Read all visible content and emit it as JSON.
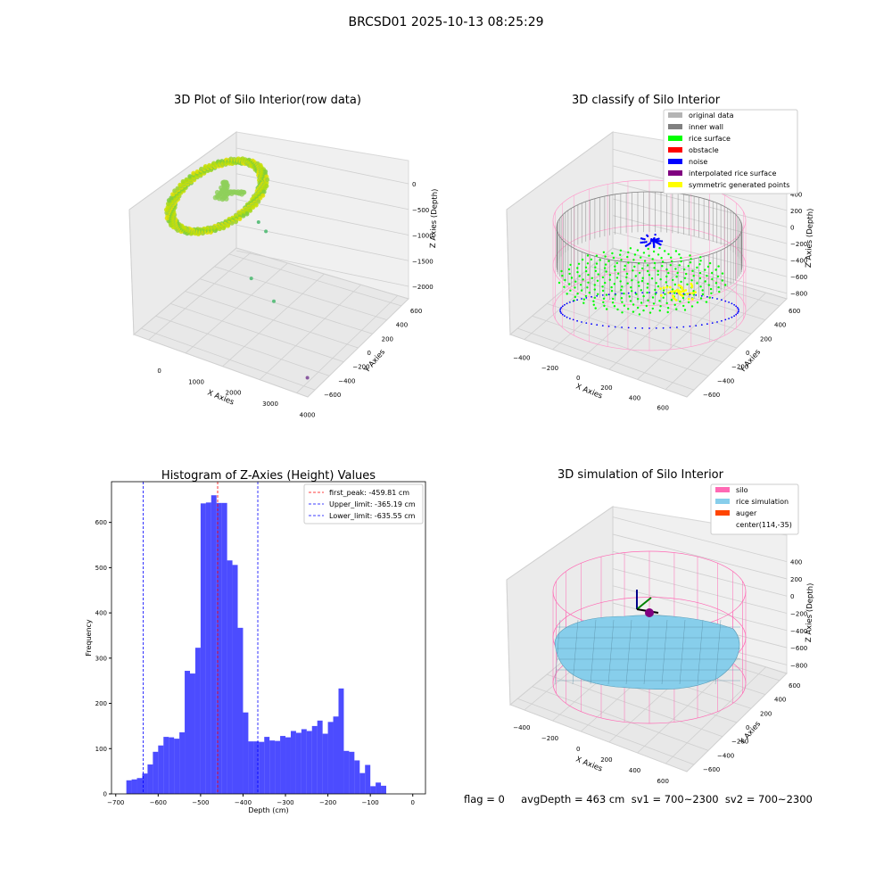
{
  "suptitle": "BRCSD01 2025-10-13 08:25:29",
  "footer": "flag = 0     avgDepth = 463 cm  sv1 = 700~2300  sv2 = 700~2300",
  "chart_data": [
    {
      "type": "scatter",
      "subtype": "3d",
      "title": "3D Plot of Silo Interior(row data)",
      "xlabel": "X Axies",
      "ylabel": "Y Axies",
      "zlabel": "Z Axies (Depth)",
      "x_ticks": [
        0,
        1000,
        2000,
        3000,
        4000
      ],
      "y_ticks": [
        -600,
        -400,
        -200,
        0,
        200,
        400,
        600
      ],
      "z_ticks": [
        -2000,
        -1500,
        -1000,
        -500,
        0
      ],
      "outlier_points": [
        {
          "x": 1000,
          "y": 300,
          "z": -700
        },
        {
          "x": 1300,
          "y": 250,
          "z": -750
        },
        {
          "x": 2600,
          "y": -300,
          "z": -1100
        },
        {
          "x": 1200,
          "y": 100,
          "z": -1500
        },
        {
          "x": 3900,
          "y": -500,
          "z": -2000
        }
      ]
    },
    {
      "type": "scatter",
      "subtype": "3d",
      "title": "3D classify of Silo Interior",
      "xlabel": "X Axies",
      "ylabel": "Y Axies",
      "zlabel": "Z Axies (Depth)",
      "x_ticks": [
        -400,
        -200,
        0,
        200,
        400,
        600
      ],
      "y_ticks": [
        -600,
        -400,
        -200,
        0,
        200,
        400,
        600
      ],
      "z_ticks": [
        -800,
        -600,
        -400,
        -200,
        0,
        200,
        400
      ],
      "legend": [
        {
          "label": "original data",
          "color": "#b4b4b4"
        },
        {
          "label": "inner wall",
          "color": "#808080"
        },
        {
          "label": "rice surface",
          "color": "#00ff00"
        },
        {
          "label": "obstacle",
          "color": "#ff0000"
        },
        {
          "label": "noise",
          "color": "#0000ff"
        },
        {
          "label": "interpolated rice surface",
          "color": "#800080"
        },
        {
          "label": "symmetric generated points",
          "color": "#ffff00"
        }
      ],
      "legend_loc": "upper right"
    },
    {
      "type": "bar",
      "subtype": "histogram",
      "title": "Histogram of Z-Axies (Height) Values",
      "xlabel": "Depth (cm)",
      "ylabel": "Frequency",
      "xlim": [
        -710,
        30
      ],
      "ylim": [
        0,
        690
      ],
      "x_ticks": [
        -700,
        -600,
        -500,
        -400,
        -300,
        -200,
        -100,
        0
      ],
      "y_ticks": [
        0,
        100,
        200,
        300,
        400,
        500,
        600
      ],
      "bin_width": 12.5,
      "bin_start": -675,
      "bar_color": "#0000ff",
      "values": [
        30,
        32,
        35,
        45,
        65,
        93,
        107,
        126,
        125,
        122,
        136,
        272,
        266,
        323,
        642,
        644,
        660,
        643,
        643,
        516,
        506,
        367,
        180,
        116,
        116,
        115,
        126,
        118,
        117,
        128,
        125,
        139,
        135,
        143,
        139,
        150,
        162,
        133,
        159,
        171,
        233,
        95,
        93,
        74,
        46,
        64,
        17,
        25,
        18
      ],
      "lines": [
        {
          "label": "first_peak: -459.81 cm",
          "x": -459.81,
          "color": "#ff0000"
        },
        {
          "label": "Upper_limit: -365.19 cm",
          "x": -365.19,
          "color": "#0000ff"
        },
        {
          "label": "Lower_limit: -635.55 cm",
          "x": -635.55,
          "color": "#0000ff"
        }
      ],
      "legend_loc": "upper right"
    },
    {
      "type": "scatter",
      "subtype": "3d-surface",
      "title": "3D simulation of Silo Interior",
      "xlabel": "X Axies",
      "ylabel": "Y Axies",
      "zlabel": "Z Axies (Depth)",
      "x_ticks": [
        -400,
        -200,
        0,
        200,
        400,
        600
      ],
      "y_ticks": [
        -600,
        -400,
        -200,
        0,
        200,
        400,
        600
      ],
      "z_ticks": [
        -800,
        -600,
        -400,
        -200,
        0,
        200,
        400
      ],
      "legend": [
        {
          "label": "silo",
          "color": "#ff69b4"
        },
        {
          "label": "rice simulation",
          "color": "#87ceeb"
        },
        {
          "label": "auger",
          "color": "#ff4500"
        },
        {
          "label": "center(114,-35)",
          "color": ""
        }
      ],
      "legend_loc": "upper right"
    }
  ]
}
